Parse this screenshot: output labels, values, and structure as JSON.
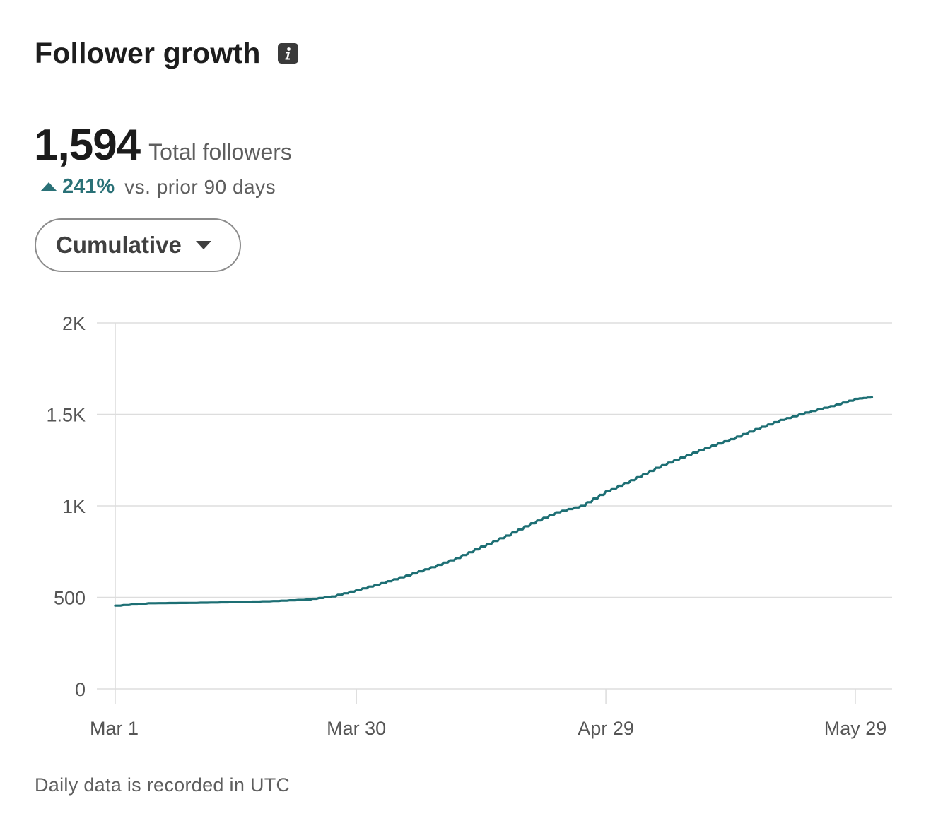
{
  "header": {
    "title": "Follower growth",
    "info_icon": "info-icon"
  },
  "summary": {
    "total_value": "1,594",
    "total_label": "Total followers",
    "change_icon": "triangle-up-icon",
    "change_pct": "241%",
    "change_label": "vs. prior 90 days"
  },
  "controls": {
    "dropdown_label": "Cumulative",
    "dropdown_icon": "caret-down-icon"
  },
  "colors": {
    "line": "#1d6f74",
    "accent_text": "#2a7177",
    "grid": "#dddddd"
  },
  "chart_data": {
    "type": "line",
    "title": "",
    "xlabel": "",
    "ylabel": "",
    "ylim": [
      0,
      2000
    ],
    "grid": true,
    "yticks": [
      {
        "value": 0,
        "label": "0"
      },
      {
        "value": 500,
        "label": "500"
      },
      {
        "value": 1000,
        "label": "1K"
      },
      {
        "value": 1500,
        "label": "1.5K"
      },
      {
        "value": 2000,
        "label": "2K"
      }
    ],
    "xticks": [
      "Mar 1",
      "Mar 30",
      "Apr 29",
      "May 29"
    ],
    "series": [
      {
        "x": [
          "Mar 1",
          "Mar 5",
          "Mar 10",
          "Mar 15",
          "Mar 20",
          "Mar 24",
          "Mar 27",
          "Mar 30",
          "Apr 2",
          "Apr 5",
          "Apr 8",
          "Apr 11",
          "Apr 14",
          "Apr 17",
          "Apr 20",
          "Apr 23",
          "Apr 26",
          "Apr 29",
          "May 2",
          "May 5",
          "May 8",
          "May 11",
          "May 14",
          "May 17",
          "May 20",
          "May 23",
          "May 26",
          "May 29",
          "May 31"
        ],
        "values": [
          455,
          468,
          470,
          474,
          480,
          488,
          505,
          540,
          578,
          620,
          665,
          715,
          778,
          838,
          905,
          965,
          1000,
          1080,
          1140,
          1208,
          1265,
          1318,
          1365,
          1420,
          1470,
          1510,
          1545,
          1585,
          1594
        ]
      }
    ]
  },
  "footer": {
    "note": "Daily data is recorded in UTC"
  }
}
